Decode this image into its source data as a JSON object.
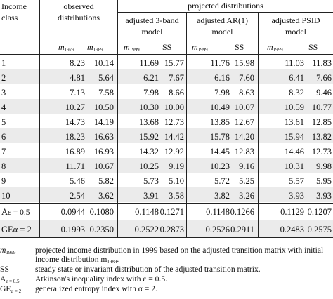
{
  "header": {
    "income_class": [
      "Income",
      "class"
    ],
    "observed": [
      "observed",
      "distributions"
    ],
    "projected": "projected distributions",
    "groups": [
      [
        "adjusted 3-band",
        "model"
      ],
      [
        "adjusted AR(1)",
        "model"
      ],
      [
        "adjusted PSID",
        "model"
      ]
    ],
    "m_symbol": "m",
    "m_subs": [
      "1979",
      "1989",
      "1999",
      "1999",
      "1999"
    ],
    "ss": "SS"
  },
  "rows": [
    {
      "label": "1",
      "values": [
        "8.23",
        "10.14",
        "11.69",
        "15.77",
        "11.76",
        "15.98",
        "11.03",
        "11.83"
      ]
    },
    {
      "label": "2",
      "values": [
        "4.81",
        "5.64",
        "6.21",
        "7.67",
        "6.16",
        "7.60",
        "6.41",
        "7.66"
      ]
    },
    {
      "label": "3",
      "values": [
        "7.13",
        "7.58",
        "7.98",
        "8.66",
        "7.98",
        "8.63",
        "8.32",
        "9.46"
      ]
    },
    {
      "label": "4",
      "values": [
        "10.27",
        "10.50",
        "10.30",
        "10.00",
        "10.49",
        "10.07",
        "10.59",
        "10.77"
      ]
    },
    {
      "label": "5",
      "values": [
        "14.73",
        "14.19",
        "13.68",
        "12.73",
        "13.85",
        "12.67",
        "13.61",
        "12.85"
      ]
    },
    {
      "label": "6",
      "values": [
        "18.23",
        "16.63",
        "15.92",
        "14.42",
        "15.78",
        "14.20",
        "15.94",
        "13.82"
      ]
    },
    {
      "label": "7",
      "values": [
        "16.89",
        "16.93",
        "14.32",
        "12.92",
        "14.45",
        "12.83",
        "14.46",
        "12.73"
      ]
    },
    {
      "label": "8",
      "values": [
        "11.71",
        "10.67",
        "10.25",
        "9.19",
        "10.23",
        "9.16",
        "10.31",
        "9.98"
      ]
    },
    {
      "label": "9",
      "values": [
        "5.46",
        "5.82",
        "5.73",
        "5.10",
        "5.72",
        "5.25",
        "5.57",
        "5.95"
      ]
    },
    {
      "label": "10",
      "values": [
        "2.54",
        "3.62",
        "3.91",
        "3.58",
        "3.82",
        "3.26",
        "3.93",
        "3.93"
      ]
    }
  ],
  "index_rows": [
    {
      "label_a": "A",
      "label_b": "ε = 0.5",
      "values": [
        "0.0944",
        "0.1080",
        "0.1148",
        "0.1271",
        "0.1148",
        "0.1266",
        "0.1129",
        "0.1207"
      ]
    },
    {
      "label_a": "GE",
      "label_b": "α = 2",
      "values": [
        "0.1993",
        "0.2350",
        "0.2522",
        "0.2873",
        "0.2526",
        "0.2911",
        "0.2483",
        "0.2575"
      ]
    }
  ],
  "notes": [
    {
      "sym": "m",
      "sym_sub": "1999",
      "lines": [
        "projected income distribution in 1999 based on the adjusted transition matrix with initial",
        "income distribution m"
      ],
      "line2_sub": "1989",
      "line2_end": "."
    },
    {
      "sym": "SS",
      "lines": [
        "steady state or invariant distribution of the adjusted transition matrix."
      ]
    },
    {
      "sym": "A",
      "sym_sub": "ε = 0.5",
      "lines": [
        "Atkinson's inequality index with ε = 0.5."
      ]
    },
    {
      "sym": "GE",
      "sym_sub": "α = 2",
      "lines": [
        "generalized entropy index with α = 2."
      ]
    }
  ],
  "colors": {
    "shade": "#ebebeb",
    "rule": "#222222",
    "text": "#111111"
  }
}
